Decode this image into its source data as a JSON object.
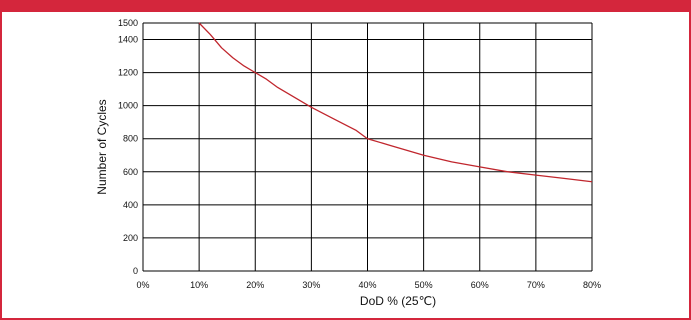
{
  "chart_data": {
    "type": "line",
    "title": "",
    "xlabel": "DoD % (25℃)",
    "ylabel": "Number of Cycles",
    "xlim": [
      0,
      80
    ],
    "ylim": [
      0,
      1500
    ],
    "xticks": [
      0,
      10,
      20,
      30,
      40,
      50,
      60,
      70,
      80
    ],
    "xtick_labels": [
      "0%",
      "10%",
      "20%",
      "30%",
      "40%",
      "50%",
      "60%",
      "70%",
      "80%"
    ],
    "yticks": [
      0,
      200,
      400,
      600,
      800,
      1000,
      1200,
      1400,
      1500
    ],
    "ytick_labels": [
      "0",
      "200",
      "400",
      "600",
      "800",
      "1000",
      "1200",
      "1400",
      "1500"
    ],
    "grid": true,
    "series": [
      {
        "name": "",
        "color": "#c0262d",
        "x": [
          10,
          12,
          14,
          16,
          18,
          20,
          22,
          24,
          26,
          28,
          30,
          34,
          38,
          40,
          44,
          50,
          55,
          60,
          65,
          70,
          75,
          80
        ],
        "y": [
          1500,
          1430,
          1350,
          1290,
          1240,
          1200,
          1160,
          1110,
          1070,
          1030,
          990,
          920,
          850,
          800,
          760,
          700,
          660,
          630,
          600,
          580,
          560,
          540
        ]
      }
    ]
  }
}
